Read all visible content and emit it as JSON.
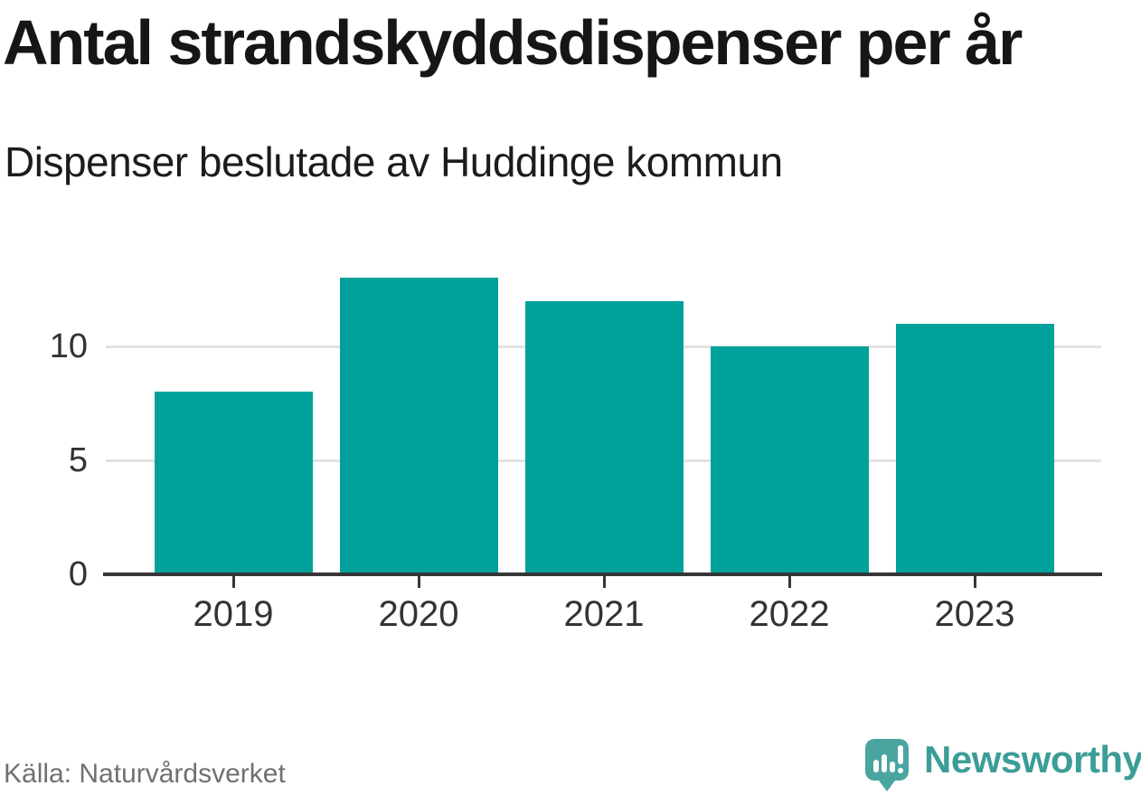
{
  "header": {
    "title": "Antal strandskyddsdispenser per år",
    "subtitle": "Dispenser beslutade av Huddinge kommun"
  },
  "chart_data": {
    "type": "bar",
    "title": "Antal strandskyddsdispenser per år",
    "subtitle": "Dispenser beslutade av Huddinge kommun",
    "categories": [
      "2019",
      "2020",
      "2021",
      "2022",
      "2023"
    ],
    "values": [
      8,
      13,
      12,
      10,
      11
    ],
    "xlabel": "",
    "ylabel": "",
    "ylim": [
      0,
      13.5
    ],
    "yticks": [
      0,
      5,
      10
    ],
    "grid": "horizontal-only",
    "legend": "none",
    "bar_color": "#00a19a",
    "axis_color": "#363636",
    "gridline_color": "#e2e2e2",
    "tick_label_color": "#333333"
  },
  "footer": {
    "source": "Källa: Naturvårdsverket",
    "brand": "Newsworthy",
    "brand_color": "#3c9d97",
    "brand_icon": "newsworthy-bubble-bar-chart-icon"
  }
}
